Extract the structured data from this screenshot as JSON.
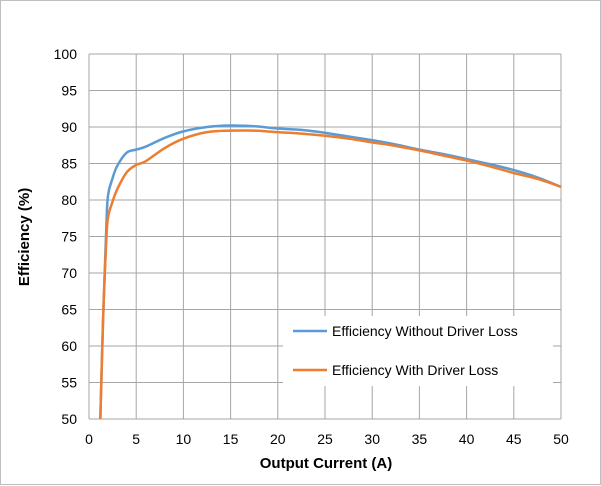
{
  "chart_data": {
    "type": "line",
    "xlabel": "Output Current (A)",
    "ylabel": "Efficiency (%)",
    "xlim": [
      0,
      50
    ],
    "ylim": [
      50,
      100
    ],
    "x_ticks": [
      0,
      5,
      10,
      15,
      20,
      25,
      30,
      35,
      40,
      45,
      50
    ],
    "y_ticks": [
      50,
      55,
      60,
      65,
      70,
      75,
      80,
      85,
      90,
      95,
      100
    ],
    "grid": true,
    "legend_position": "bottom-right",
    "series": [
      {
        "name": "Efficiency Without Driver Loss",
        "color": "#5b9bd5",
        "x": [
          1.2,
          1.5,
          1.8,
          2.0,
          2.5,
          3.0,
          4.0,
          5.0,
          6.0,
          8.0,
          10.0,
          12.5,
          15.0,
          17.5,
          20.0,
          22.5,
          25.0,
          27.5,
          30.0,
          32.5,
          35.0,
          37.5,
          40.0,
          42.5,
          45.0,
          47.5,
          50.0
        ],
        "y": [
          50.0,
          64.0,
          75.0,
          80.5,
          83.0,
          84.7,
          86.5,
          86.9,
          87.3,
          88.5,
          89.4,
          90.0,
          90.2,
          90.1,
          89.8,
          89.6,
          89.2,
          88.7,
          88.2,
          87.6,
          86.9,
          86.3,
          85.6,
          84.9,
          84.1,
          83.1,
          81.8
        ]
      },
      {
        "name": "Efficiency With Driver Loss",
        "color": "#ed7d31",
        "x": [
          1.2,
          1.5,
          1.8,
          2.0,
          2.5,
          3.0,
          4.0,
          5.0,
          6.0,
          8.0,
          10.0,
          12.5,
          15.0,
          17.5,
          20.0,
          22.5,
          25.0,
          27.5,
          30.0,
          32.5,
          35.0,
          37.5,
          40.0,
          42.5,
          45.0,
          47.5,
          50.0
        ],
        "y": [
          50.0,
          64.0,
          73.5,
          77.5,
          79.8,
          81.5,
          83.8,
          84.8,
          85.3,
          87.1,
          88.4,
          89.3,
          89.5,
          89.5,
          89.3,
          89.1,
          88.8,
          88.4,
          87.9,
          87.4,
          86.8,
          86.1,
          85.4,
          84.6,
          83.7,
          82.9,
          81.8
        ]
      }
    ]
  }
}
